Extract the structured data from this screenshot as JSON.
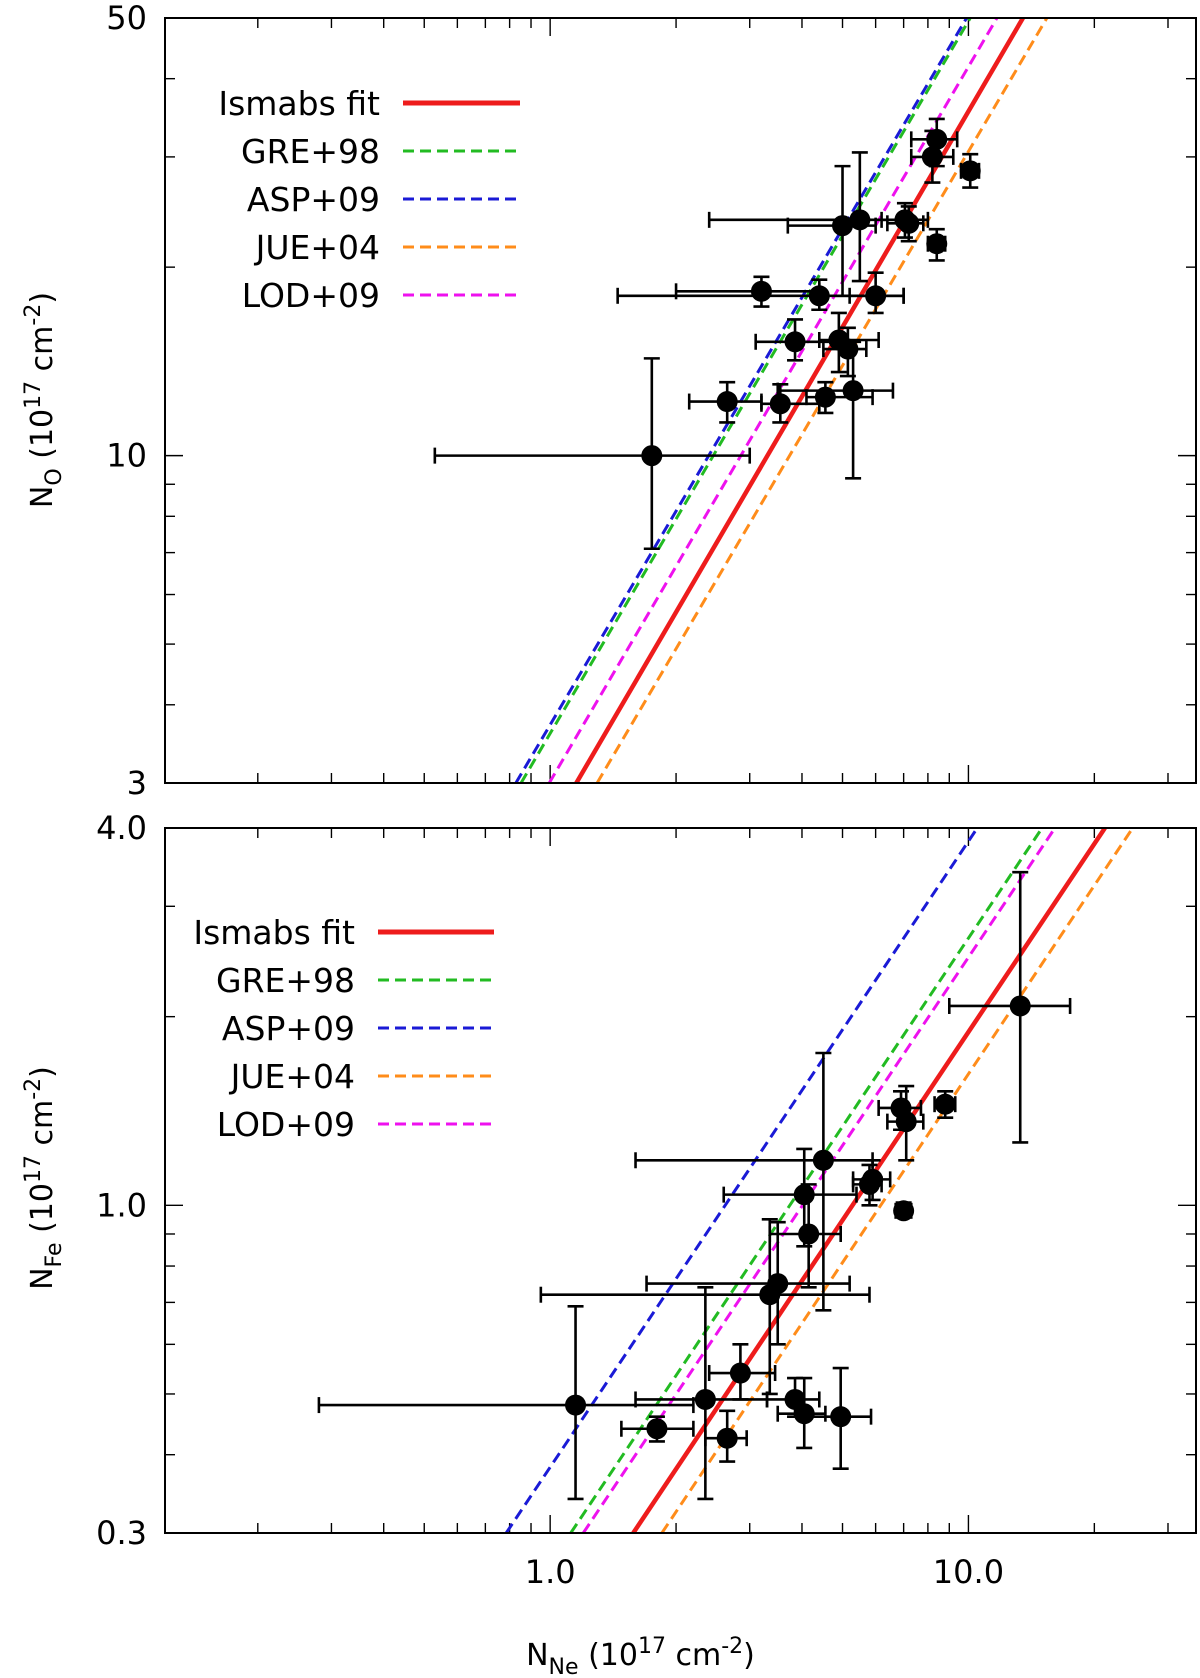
{
  "colors": {
    "ismabs": "#ee1c1c",
    "gre98": "#22bb22",
    "asp09": "#1a1ad6",
    "jue04": "#ff8c1a",
    "lod09": "#ee11ee",
    "points": "#000000"
  },
  "chart_data": [
    {
      "type": "scatter",
      "panel": "top",
      "ylabel": {
        "main": "N",
        "sub": "O",
        "unit_open": " (10",
        "exp": "17",
        "unit_mid": " cm",
        "exp2": "-2",
        "unit_close": ")"
      },
      "xscale": "log",
      "yscale": "log",
      "xlim": [
        0.12,
        35
      ],
      "ylim": [
        3,
        50
      ],
      "y_tick_labels": [
        "50",
        "10",
        "3"
      ],
      "y_tick_values": [
        50,
        10,
        3
      ],
      "legend": [
        {
          "label": "Ismabs fit",
          "color": "#ee1c1c",
          "dash": "solid"
        },
        {
          "label": "GRE+98",
          "color": "#22bb22",
          "dash": "dashed"
        },
        {
          "label": "ASP+09",
          "color": "#1a1ad6",
          "dash": "dashed"
        },
        {
          "label": "JUE+04",
          "color": "#ff8c1a",
          "dash": "dashed"
        },
        {
          "label": "LOD+09",
          "color": "#ee11ee",
          "dash": "dashed"
        }
      ],
      "lines": [
        {
          "name": "Ismabs fit",
          "x": [
            1.155,
            13.5
          ],
          "y": [
            3,
            50
          ]
        },
        {
          "name": "GRE+98",
          "x": [
            0.852,
            10.1
          ],
          "y": [
            3,
            50
          ]
        },
        {
          "name": "ASP+09",
          "x": [
            0.828,
            9.9
          ],
          "y": [
            3,
            50
          ]
        },
        {
          "name": "JUE+04",
          "x": [
            1.295,
            15.4
          ],
          "y": [
            3,
            50
          ]
        },
        {
          "name": "LOD+09",
          "x": [
            0.995,
            11.7
          ],
          "y": [
            3,
            50
          ]
        }
      ],
      "points": [
        {
          "x": 1.75,
          "y": 10.0,
          "xerr": [
            0.53,
            3.0
          ],
          "yerr": [
            7.1,
            14.3
          ]
        },
        {
          "x": 2.65,
          "y": 12.2,
          "xerr": [
            2.15,
            3.2
          ],
          "yerr": [
            11.3,
            13.1
          ]
        },
        {
          "x": 3.55,
          "y": 12.1,
          "xerr": [
            3.2,
            4.4
          ],
          "yerr": [
            11.3,
            13.0
          ]
        },
        {
          "x": 3.85,
          "y": 15.2,
          "xerr": [
            3.1,
            4.9
          ],
          "yerr": [
            14.2,
            16.5
          ]
        },
        {
          "x": 4.55,
          "y": 12.4,
          "xerr": [
            4.1,
            5.9
          ],
          "yerr": [
            11.7,
            13.1
          ]
        },
        {
          "x": 4.9,
          "y": 15.3,
          "xerr": [
            4.4,
            6.1
          ],
          "yerr": [
            13.6,
            16.9
          ]
        },
        {
          "x": 5.15,
          "y": 14.8,
          "xerr": [
            4.5,
            5.7
          ],
          "yerr": [
            13.4,
            16.0
          ]
        },
        {
          "x": 5.3,
          "y": 12.7,
          "xerr": [
            3.5,
            6.6
          ],
          "yerr": [
            9.2,
            15.2
          ]
        },
        {
          "x": 3.2,
          "y": 18.3,
          "xerr": [
            2.0,
            4.4
          ],
          "yerr": [
            17.3,
            19.3
          ]
        },
        {
          "x": 4.4,
          "y": 18.0,
          "xerr": [
            1.45,
            7.0
          ],
          "yerr": [
            17.1,
            19.1
          ]
        },
        {
          "x": 6.0,
          "y": 18.0,
          "xerr": [
            5.2,
            7.0
          ],
          "yerr": [
            16.9,
            19.6
          ]
        },
        {
          "x": 5.0,
          "y": 23.3,
          "xerr": [
            3.7,
            6.0
          ],
          "yerr": [
            18.0,
            29.0
          ]
        },
        {
          "x": 5.5,
          "y": 23.8,
          "xerr": [
            2.4,
            7.0
          ],
          "yerr": [
            19.0,
            30.5
          ]
        },
        {
          "x": 7.2,
          "y": 23.5,
          "xerr": [
            6.4,
            7.8
          ],
          "yerr": [
            22.0,
            25.0
          ]
        },
        {
          "x": 7.05,
          "y": 23.8,
          "xerr": [
            6.2,
            8.0
          ],
          "yerr": [
            22.3,
            25.3
          ]
        },
        {
          "x": 8.4,
          "y": 21.8,
          "xerr": [
            8.0,
            8.8
          ],
          "yerr": [
            20.5,
            23.0
          ]
        },
        {
          "x": 8.2,
          "y": 30.0,
          "xerr": [
            7.3,
            9.2
          ],
          "yerr": [
            27.3,
            33.0
          ]
        },
        {
          "x": 8.4,
          "y": 32.0,
          "xerr": [
            7.3,
            9.4
          ],
          "yerr": [
            29.0,
            34.5
          ]
        },
        {
          "x": 10.1,
          "y": 28.5,
          "xerr": [
            9.6,
            10.6
          ],
          "yerr": [
            26.8,
            30.3
          ]
        }
      ]
    },
    {
      "type": "scatter",
      "panel": "bottom",
      "ylabel": {
        "main": "N",
        "sub": "Fe",
        "unit_open": " (10",
        "exp": "17",
        "unit_mid": " cm",
        "exp2": "-2",
        "unit_close": ")"
      },
      "xlabel": {
        "main": "N",
        "sub": "Ne",
        "unit_open": " (10",
        "exp": "17",
        "unit_mid": " cm",
        "exp2": "-2",
        "unit_close": ")"
      },
      "xscale": "log",
      "yscale": "log",
      "xlim": [
        0.12,
        35
      ],
      "ylim": [
        0.3,
        4.0
      ],
      "x_tick_labels": [
        "1.0",
        "10.0"
      ],
      "x_tick_values": [
        1,
        10
      ],
      "y_tick_labels": [
        "4.0",
        "1.0",
        "0.3"
      ],
      "y_tick_values": [
        4.0,
        1.0,
        0.3
      ],
      "legend": [
        {
          "label": "Ismabs fit",
          "color": "#ee1c1c",
          "dash": "solid"
        },
        {
          "label": "GRE+98",
          "color": "#22bb22",
          "dash": "dashed"
        },
        {
          "label": "ASP+09",
          "color": "#1a1ad6",
          "dash": "dashed"
        },
        {
          "label": "JUE+04",
          "color": "#ff8c1a",
          "dash": "dashed"
        },
        {
          "label": "LOD+09",
          "color": "#ee11ee",
          "dash": "dashed"
        }
      ],
      "lines": [
        {
          "name": "Ismabs fit",
          "x": [
            1.58,
            21.2
          ],
          "y": [
            0.3,
            4.0
          ]
        },
        {
          "name": "GRE+98",
          "x": [
            1.12,
            15.0
          ],
          "y": [
            0.3,
            4.0
          ]
        },
        {
          "name": "ASP+09",
          "x": [
            0.785,
            10.5
          ],
          "y": [
            0.3,
            4.0
          ]
        },
        {
          "name": "JUE+04",
          "x": [
            1.85,
            24.7
          ],
          "y": [
            0.3,
            4.0
          ]
        },
        {
          "name": "LOD+09",
          "x": [
            1.2,
            16.1
          ],
          "y": [
            0.3,
            4.0
          ]
        }
      ],
      "points": [
        {
          "x": 1.15,
          "y": 0.48,
          "xerr": [
            0.28,
            2.2
          ],
          "yerr": [
            0.34,
            0.69
          ]
        },
        {
          "x": 1.8,
          "y": 0.44,
          "xerr": [
            1.48,
            2.2
          ],
          "yerr": [
            0.42,
            0.46
          ]
        },
        {
          "x": 2.35,
          "y": 0.49,
          "xerr": [
            1.6,
            3.3
          ],
          "yerr": [
            0.34,
            0.74
          ]
        },
        {
          "x": 2.65,
          "y": 0.425,
          "xerr": [
            2.35,
            2.95
          ],
          "yerr": [
            0.39,
            0.47
          ]
        },
        {
          "x": 2.85,
          "y": 0.54,
          "xerr": [
            2.4,
            3.45
          ],
          "yerr": [
            0.49,
            0.6
          ]
        },
        {
          "x": 3.35,
          "y": 0.72,
          "xerr": [
            0.95,
            5.8
          ],
          "yerr": [
            0.5,
            0.95
          ]
        },
        {
          "x": 3.5,
          "y": 0.75,
          "xerr": [
            1.7,
            5.2
          ],
          "yerr": [
            0.6,
            0.94
          ]
        },
        {
          "x": 3.85,
          "y": 0.49,
          "xerr": [
            3.3,
            4.4
          ],
          "yerr": [
            0.46,
            0.53
          ]
        },
        {
          "x": 4.05,
          "y": 0.465,
          "xerr": [
            3.5,
            4.55
          ],
          "yerr": [
            0.41,
            0.53
          ]
        },
        {
          "x": 4.15,
          "y": 0.9,
          "xerr": [
            3.35,
            4.95
          ],
          "yerr": [
            0.74,
            1.08
          ]
        },
        {
          "x": 4.05,
          "y": 1.04,
          "xerr": [
            2.6,
            5.4
          ],
          "yerr": [
            0.86,
            1.23
          ]
        },
        {
          "x": 4.5,
          "y": 1.18,
          "xerr": [
            1.6,
            5.9
          ],
          "yerr": [
            0.68,
            1.75
          ]
        },
        {
          "x": 4.95,
          "y": 0.46,
          "xerr": [
            4.05,
            5.85
          ],
          "yerr": [
            0.38,
            0.55
          ]
        },
        {
          "x": 5.8,
          "y": 1.08,
          "xerr": [
            5.3,
            6.2
          ],
          "yerr": [
            1.0,
            1.16
          ]
        },
        {
          "x": 5.9,
          "y": 1.1,
          "xerr": [
            5.3,
            6.5
          ],
          "yerr": [
            1.02,
            1.18
          ]
        },
        {
          "x": 6.9,
          "y": 1.43,
          "xerr": [
            6.1,
            7.7
          ],
          "yerr": [
            1.32,
            1.52
          ]
        },
        {
          "x": 7.1,
          "y": 1.36,
          "xerr": [
            6.4,
            7.8
          ],
          "yerr": [
            1.18,
            1.55
          ]
        },
        {
          "x": 7.0,
          "y": 0.98,
          "xerr": [
            6.7,
            7.3
          ],
          "yerr": [
            0.96,
            1.01
          ]
        },
        {
          "x": 8.8,
          "y": 1.45,
          "xerr": [
            8.3,
            9.3
          ],
          "yerr": [
            1.38,
            1.52
          ]
        },
        {
          "x": 13.3,
          "y": 2.08,
          "xerr": [
            9.0,
            17.5
          ],
          "yerr": [
            1.26,
            3.4
          ]
        }
      ]
    }
  ]
}
